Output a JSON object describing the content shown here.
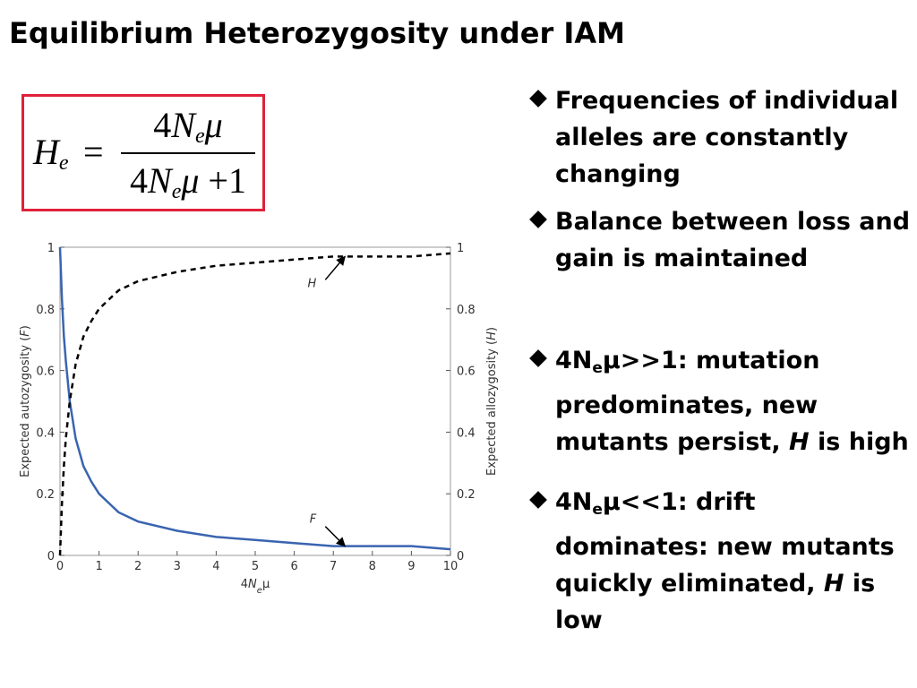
{
  "title": "Equilibrium Heterozygosity under IAM",
  "formula": {
    "lhs": "H",
    "lhs_sub": "e",
    "equals": "=",
    "numerator": [
      {
        "text": "4"
      },
      {
        "text": "N",
        "style": "italic"
      },
      {
        "text": "e",
        "style": "sub"
      },
      {
        "text": "μ",
        "style": "italic"
      }
    ],
    "denominator": [
      {
        "text": "4"
      },
      {
        "text": "N",
        "style": "italic"
      },
      {
        "text": "e",
        "style": "sub"
      },
      {
        "text": "μ",
        "style": "italic"
      },
      {
        "text": " +1"
      }
    ]
  },
  "bullets": [
    [
      {
        "text": "Frequencies of individual alleles are constantly changing"
      }
    ],
    [
      {
        "text": "Balance between loss and gain is maintained"
      }
    ],
    [
      {
        "text": "4N"
      },
      {
        "text": "e",
        "style": "sub"
      },
      {
        "text": "μ>>1: mutation predominates, new mutants persist, "
      },
      {
        "text": "H",
        "style": "italic"
      },
      {
        "text": " is high"
      }
    ],
    [
      {
        "text": "4N"
      },
      {
        "text": "e",
        "style": "sub"
      },
      {
        "text": "μ<<1: drift dominates: new mutants quickly eliminated, "
      },
      {
        "text": "H",
        "style": "italic"
      },
      {
        "text": " is low"
      }
    ]
  ],
  "chart_data": {
    "type": "line",
    "xlabel": [
      {
        "text": "4"
      },
      {
        "text": "N",
        "style": "italic"
      },
      {
        "text": "e",
        "style": "sub"
      },
      {
        "text": "μ"
      }
    ],
    "ylabel": [
      {
        "text": "Expected autozygosity ("
      },
      {
        "text": "F",
        "style": "italic"
      },
      {
        "text": ")"
      }
    ],
    "y2label": [
      {
        "text": "Expected allozygosity ("
      },
      {
        "text": "H",
        "style": "italic"
      },
      {
        "text": ")"
      }
    ],
    "x": [
      0,
      0.05,
      0.1,
      0.15,
      0.25,
      0.4,
      0.6,
      0.8,
      1,
      1.5,
      2,
      3,
      4,
      5,
      6,
      7,
      8,
      9,
      10
    ],
    "xlim": [
      0,
      10
    ],
    "xticks": [
      0,
      1,
      2,
      3,
      4,
      5,
      6,
      7,
      8,
      9,
      10
    ],
    "ylim": [
      0,
      1
    ],
    "yticks": [
      0,
      0.2,
      0.4,
      0.6,
      0.8,
      1
    ],
    "y2lim": [
      0,
      1
    ],
    "y2ticks": [
      0,
      0.2,
      0.4,
      0.6,
      0.8,
      1
    ],
    "series": [
      {
        "name": "F",
        "color": "#3a64b0",
        "dashed": false,
        "axis": "y",
        "values": [
          1,
          0.83,
          0.71,
          0.63,
          0.5,
          0.38,
          0.29,
          0.24,
          0.2,
          0.14,
          0.11,
          0.08,
          0.06,
          0.05,
          0.04,
          0.03,
          0.03,
          0.03,
          0.02
        ],
        "label_at": {
          "x": 7.3,
          "y": 0.03
        }
      },
      {
        "name": "H",
        "color": "#000000",
        "dashed": true,
        "axis": "y2",
        "values": [
          0,
          0.17,
          0.29,
          0.38,
          0.5,
          0.62,
          0.71,
          0.76,
          0.8,
          0.86,
          0.89,
          0.92,
          0.94,
          0.95,
          0.96,
          0.97,
          0.97,
          0.97,
          0.98
        ],
        "label_at": {
          "x": 7.3,
          "y": 0.97
        }
      }
    ]
  }
}
